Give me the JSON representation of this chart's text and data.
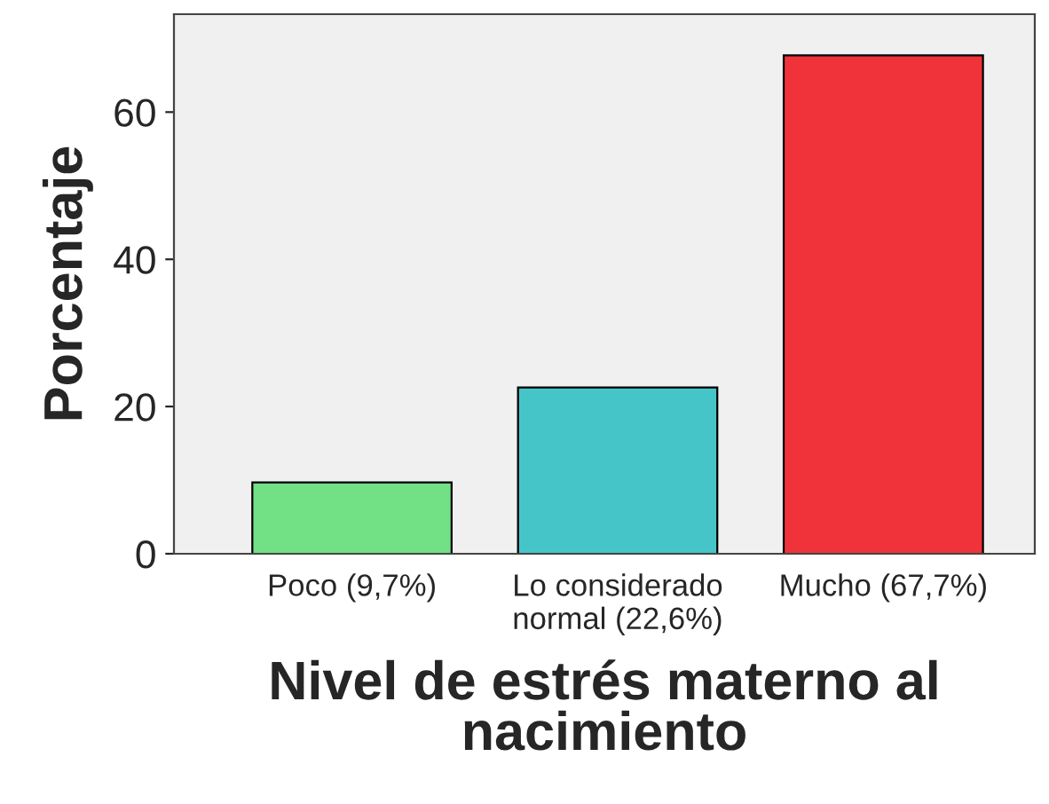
{
  "chart_data": {
    "type": "bar",
    "xlabel": "Nivel de estrés materno al\nnacimiento",
    "ylabel": "Porcentaje",
    "categories": [
      "Poco (9,7%)",
      "Lo considerado\nnormal (22,6%)",
      "Mucho (67,7%)"
    ],
    "values": [
      9.7,
      22.6,
      67.7
    ],
    "colors": [
      "#72e085",
      "#46c5c8",
      "#f0333b"
    ],
    "ylim": [
      0,
      73.3
    ],
    "yticks": [
      0,
      20,
      40,
      60
    ],
    "grid": false
  }
}
